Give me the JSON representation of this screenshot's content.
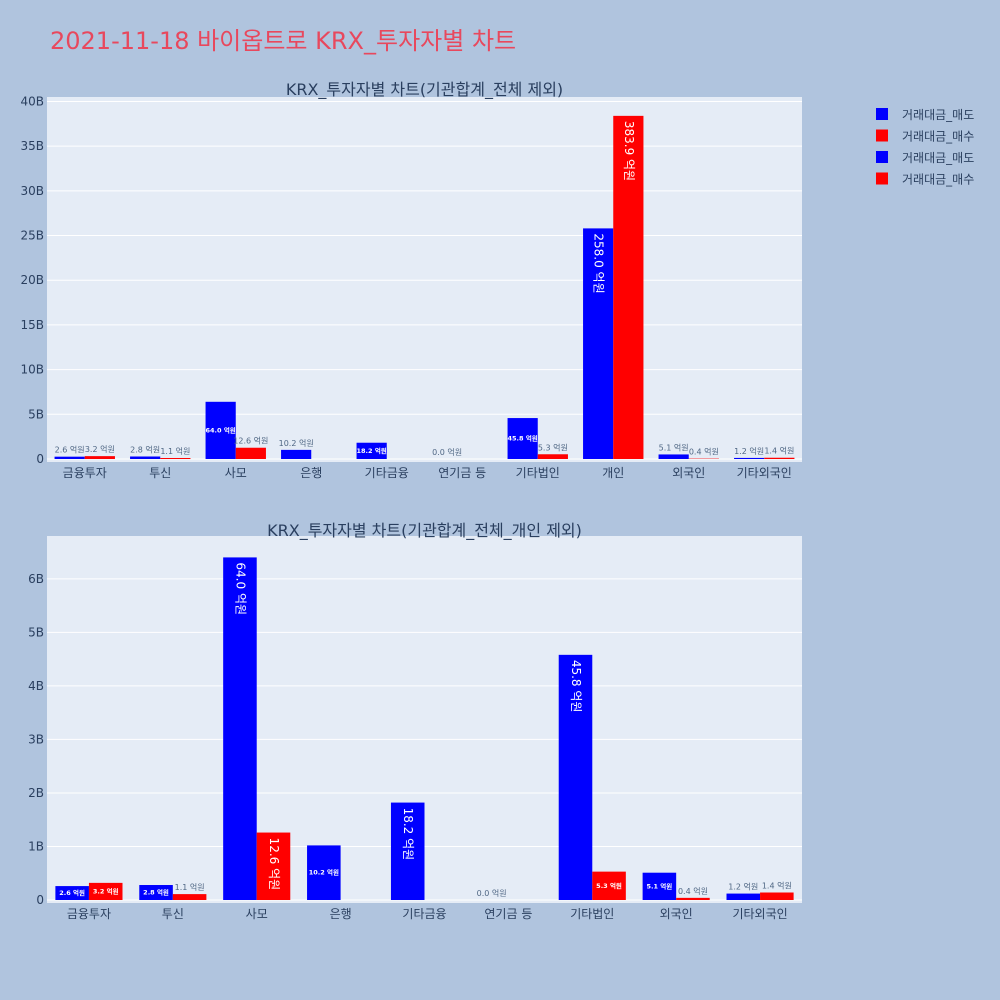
{
  "page_title": "2021-11-18 바이옵트로 KRX_투자자별 차트",
  "colors": {
    "page_bg": "#b0c4de",
    "plot_bg": "#e5ecf6",
    "sell": "#0000ff",
    "buy": "#ff0000",
    "title": "#e8485d",
    "text": "#2a3f5f",
    "grid": "#ffffff"
  },
  "legend": [
    {
      "label": "거래대금_매도",
      "color": "#0000ff"
    },
    {
      "label": "거래대금_매수",
      "color": "#ff0000"
    },
    {
      "label": "거래대금_매도",
      "color": "#0000ff"
    },
    {
      "label": "거래대금_매수",
      "color": "#ff0000"
    }
  ],
  "chart_data": [
    {
      "type": "bar",
      "title": "KRX_투자자별 차트(기관합계_전체 제외)",
      "categories": [
        "금융투자",
        "투신",
        "사모",
        "은행",
        "기타금융",
        "연기금 등",
        "기타법인",
        "개인",
        "외국인",
        "기타외국인"
      ],
      "series": [
        {
          "name": "거래대금_매도",
          "values": [
            0.26,
            0.28,
            6.4,
            1.02,
            1.82,
            0.0,
            4.58,
            25.8,
            0.51,
            0.12
          ],
          "labels": [
            "2.6 억원",
            "2.8 억원",
            "64.0 억원",
            "10.2 억원",
            "18.2 억원",
            "0.0 억원",
            "45.8 억원",
            "258.0 억원",
            "5.1 억원",
            "1.2 억원"
          ]
        },
        {
          "name": "거래대금_매수",
          "values": [
            0.32,
            0.11,
            1.26,
            null,
            null,
            null,
            0.53,
            38.39,
            0.04,
            0.14
          ],
          "labels": [
            "3.2 억원",
            "1.1 억원",
            "12.6 억원",
            "",
            "",
            "",
            "5.3 억원",
            "383.9 억원",
            "0.4 억원",
            "1.4 억원"
          ]
        }
      ],
      "y_ticks": [
        0,
        5,
        10,
        15,
        20,
        25,
        30,
        35,
        40
      ],
      "y_tick_labels": [
        "0",
        "5B",
        "10B",
        "15B",
        "20B",
        "25B",
        "30B",
        "35B",
        "40B"
      ],
      "ylim": [
        0,
        40.5
      ],
      "grid": true,
      "legend_position": "top-right"
    },
    {
      "type": "bar",
      "title": "KRX_투자자별 차트(기관합계_전체_개인 제외)",
      "categories": [
        "금융투자",
        "투신",
        "사모",
        "은행",
        "기타금융",
        "연기금 등",
        "기타법인",
        "외국인",
        "기타외국인"
      ],
      "series": [
        {
          "name": "거래대금_매도",
          "values": [
            0.26,
            0.28,
            6.4,
            1.02,
            1.82,
            0.0,
            4.58,
            0.51,
            0.12
          ],
          "labels": [
            "2.6 억원",
            "2.8 억원",
            "64.0 억원",
            "10.2 억원",
            "18.2 억원",
            "0.0 억원",
            "45.8 억원",
            "5.1 억원",
            "1.2 억원"
          ]
        },
        {
          "name": "거래대금_매수",
          "values": [
            0.32,
            0.11,
            1.26,
            null,
            null,
            null,
            0.53,
            0.04,
            0.14
          ],
          "labels": [
            "3.2 억원",
            "1.1 억원",
            "12.6 억원",
            "",
            "",
            "",
            "5.3 억원",
            "0.4 억원",
            "1.4 억원"
          ]
        }
      ],
      "y_ticks": [
        0,
        1,
        2,
        3,
        4,
        5,
        6
      ],
      "y_tick_labels": [
        "0",
        "1B",
        "2B",
        "3B",
        "4B",
        "5B",
        "6B"
      ],
      "ylim": [
        0,
        6.8
      ],
      "grid": true,
      "legend_position": "top-right"
    }
  ]
}
